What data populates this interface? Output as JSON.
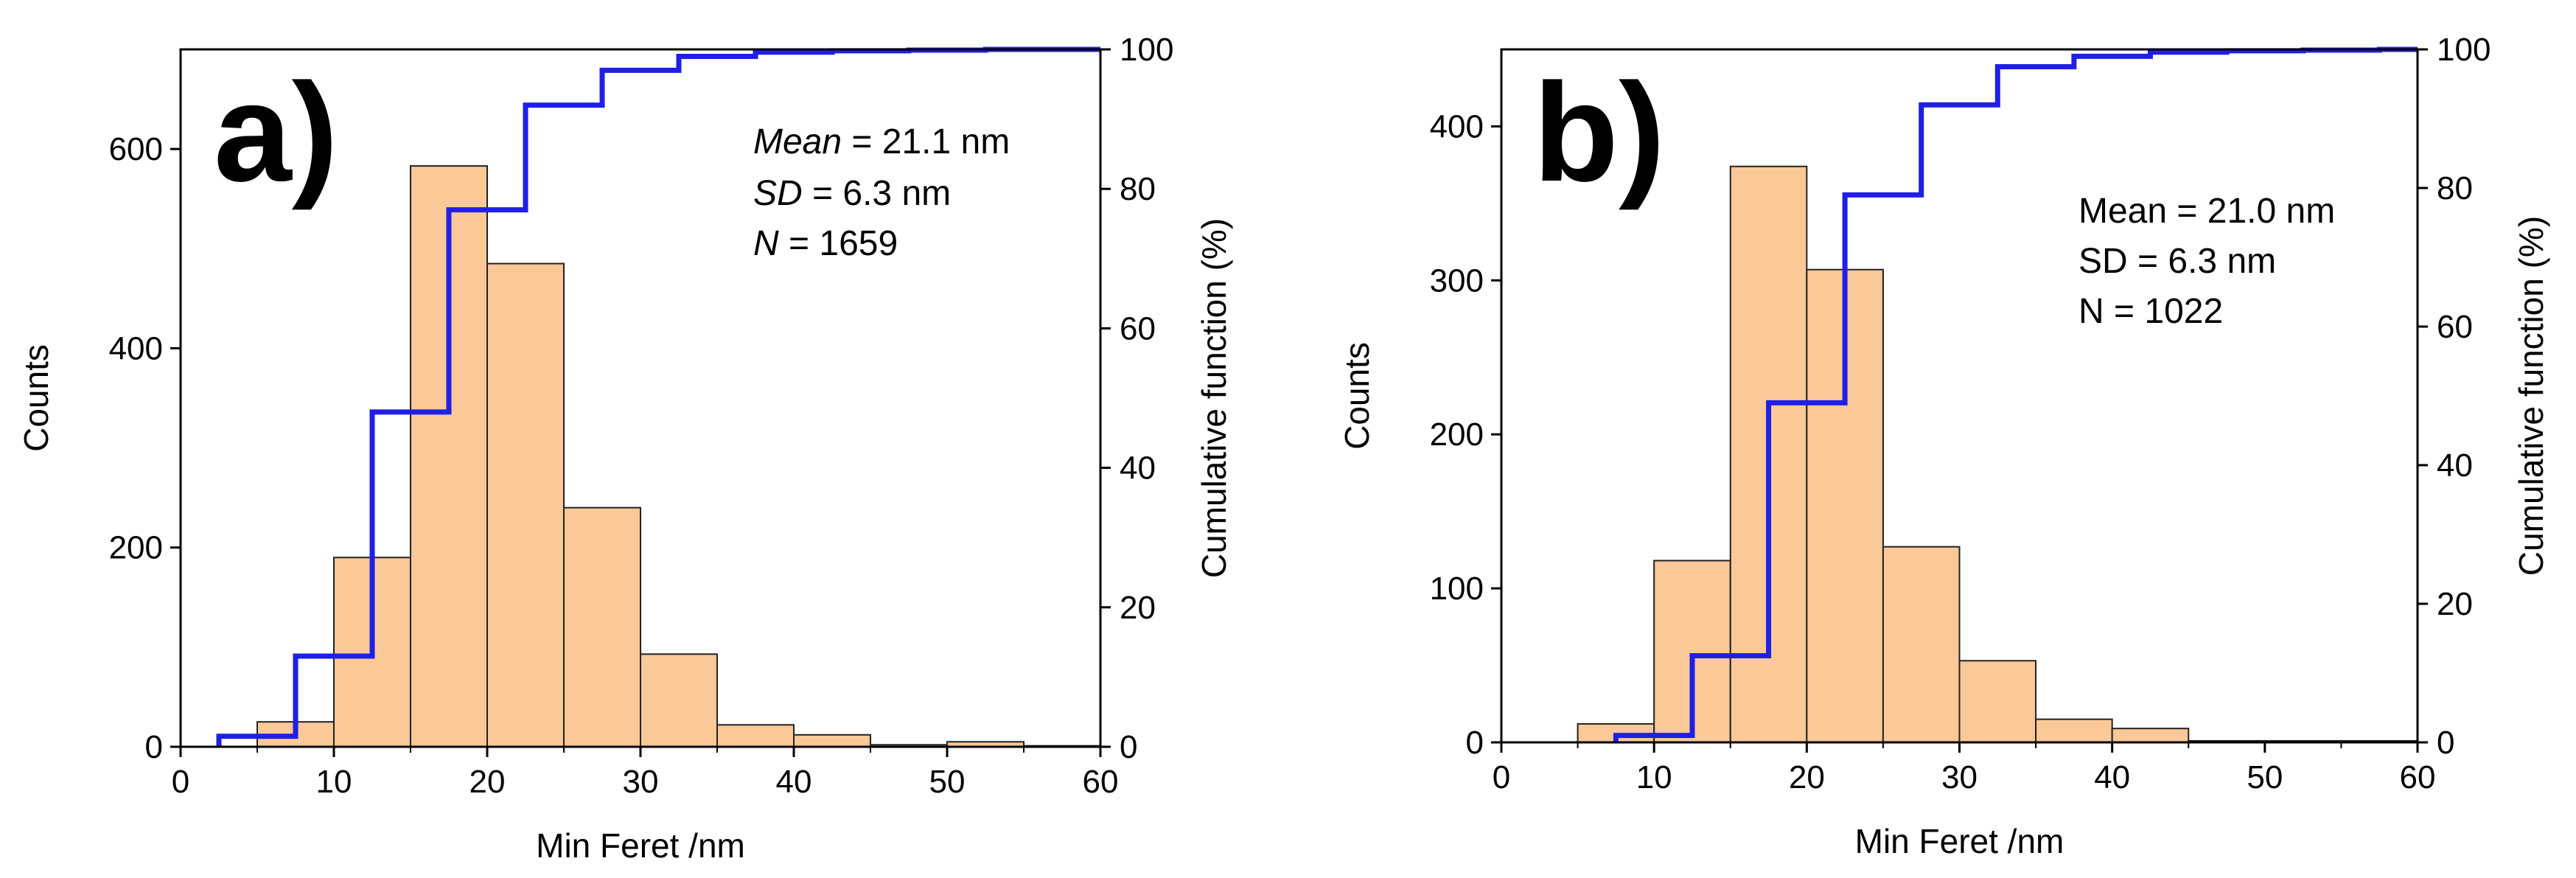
{
  "chart_data": [
    {
      "type": "bar",
      "panel_label": "a)",
      "xlabel": "Min Feret /nm",
      "ylabel": "Counts",
      "y2label": "Cumulative function (%)",
      "xlim": [
        0,
        60
      ],
      "ylim": [
        0,
        700
      ],
      "y2lim": [
        0,
        100
      ],
      "xticks": [
        0,
        10,
        20,
        30,
        40,
        50,
        60
      ],
      "yticks": [
        0,
        200,
        400,
        600
      ],
      "y2ticks": [
        0,
        20,
        40,
        60,
        80,
        100
      ],
      "bin_width": 5,
      "bin_starts": [
        5,
        10,
        15,
        20,
        25,
        30,
        35,
        40,
        45,
        50,
        55
      ],
      "values": [
        25,
        190,
        583,
        485,
        240,
        93,
        22,
        12,
        2,
        5,
        1
      ],
      "cumulative": {
        "name": "Cumulative function",
        "color": "#1f1fe6",
        "x": [
          2.5,
          7.5,
          12.5,
          17.5,
          22.5,
          27.5,
          32.5,
          37.5,
          42.5,
          47.5,
          52.5,
          57.5,
          60
        ],
        "y": [
          1.5,
          13,
          48,
          77,
          92,
          97,
          99,
          99.6,
          99.8,
          99.9,
          100,
          100,
          100
        ]
      },
      "bar_color": "#fbc898",
      "stats": [
        {
          "label": "Mean",
          "rest": " = 21.1 nm"
        },
        {
          "label": "SD",
          "rest": " = 6.3 nm"
        },
        {
          "label": "N",
          "rest": " = 1659"
        }
      ]
    },
    {
      "type": "bar",
      "panel_label": "b)",
      "xlabel": "Min Feret /nm",
      "ylabel": "Counts",
      "y2label": "Cumulative function (%)",
      "xlim": [
        0,
        60
      ],
      "ylim": [
        0,
        450
      ],
      "y2lim": [
        0,
        100
      ],
      "xticks": [
        0,
        10,
        20,
        30,
        40,
        50,
        60
      ],
      "yticks": [
        0,
        100,
        200,
        300,
        400
      ],
      "y2ticks": [
        0,
        20,
        40,
        60,
        80,
        100
      ],
      "bin_width": 5,
      "bin_starts": [
        5,
        10,
        15,
        20,
        25,
        30,
        35,
        40,
        45,
        50,
        55
      ],
      "values": [
        12,
        118,
        374,
        307,
        127,
        53,
        15,
        9,
        1,
        1,
        1
      ],
      "cumulative": {
        "name": "Cumulative function",
        "color": "#1f1fe6",
        "x": [
          7.5,
          12.5,
          17.5,
          22.5,
          27.5,
          32.5,
          37.5,
          42.5,
          47.5,
          52.5,
          57.5,
          60
        ],
        "y": [
          1,
          12.5,
          49,
          79,
          92,
          97.5,
          99,
          99.6,
          99.8,
          99.9,
          100,
          100
        ]
      },
      "bar_color": "#fbc898",
      "stats": [
        {
          "label": "Mean",
          "rest": " = 21.0 nm"
        },
        {
          "label": "SD",
          "rest": " = 6.3 nm"
        },
        {
          "label": "N",
          "rest": " = 1022"
        }
      ]
    }
  ]
}
